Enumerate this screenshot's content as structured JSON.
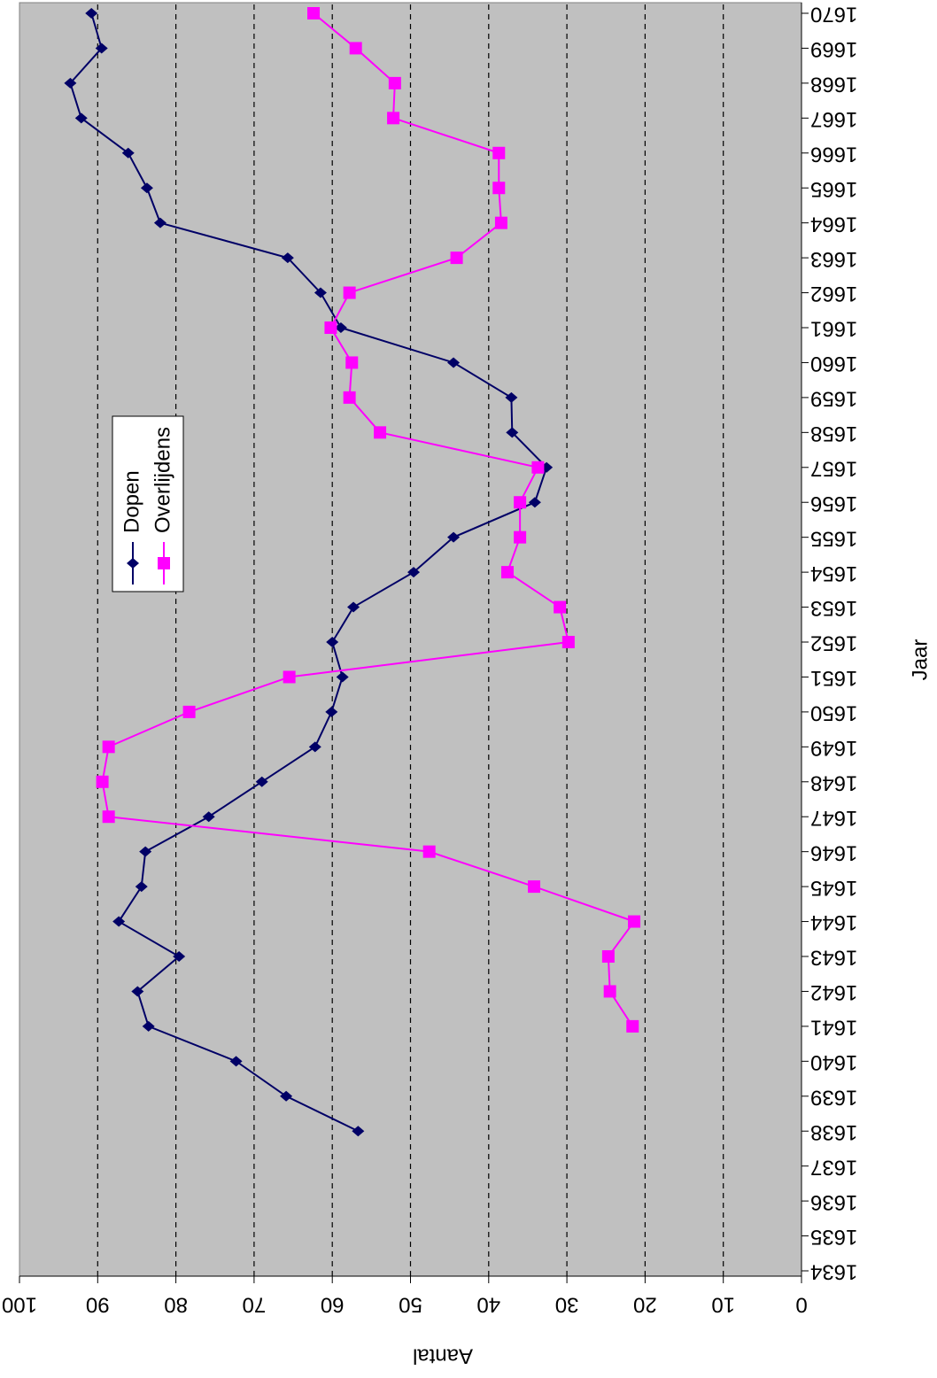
{
  "chart_data": {
    "type": "line",
    "x_label": "Jaar",
    "y_label": "Aantal",
    "categories": [
      "1634",
      "1635",
      "1636",
      "1637",
      "1638",
      "1639",
      "1640",
      "1641",
      "1642",
      "1643",
      "1644",
      "1645",
      "1646",
      "1647",
      "1648",
      "1649",
      "1650",
      "1651",
      "1652",
      "1653",
      "1654",
      "1655",
      "1656",
      "1657",
      "1658",
      "1659",
      "1660",
      "1661",
      "1662",
      "1663",
      "1664",
      "1665",
      "1666",
      "1667",
      "1668",
      "1669",
      "1670"
    ],
    "series": [
      {
        "name": "Dopen",
        "color": "#000066",
        "marker": "diamond",
        "values": [
          null,
          null,
          null,
          null,
          56.7,
          65.9,
          72.3,
          83.5,
          84.9,
          79.6,
          87.3,
          84.4,
          83.9,
          75.8,
          69,
          62.2,
          60.1,
          58.7,
          60,
          57.3,
          49.6,
          44.5,
          34.1,
          32.6,
          37,
          37.1,
          44.5,
          58.9,
          61.5,
          65.7,
          82,
          83.7,
          86.1,
          92.1,
          93.5,
          89.5,
          90.8
        ]
      },
      {
        "name": "Overlijdens",
        "color": "#ff00ff",
        "marker": "square",
        "values": [
          null,
          null,
          null,
          null,
          null,
          null,
          null,
          21.6,
          24.5,
          24.7,
          21.4,
          34.2,
          47.6,
          88.6,
          89.4,
          88.6,
          78.3,
          65.5,
          29.8,
          30.9,
          37.6,
          36,
          36,
          33.7,
          53.9,
          57.8,
          57.5,
          60.2,
          57.8,
          44.1,
          38.4,
          38.7,
          38.7,
          52.2,
          52,
          57,
          62.4
        ]
      }
    ],
    "ylim": [
      0,
      100
    ],
    "yticks": [
      0,
      10,
      20,
      30,
      40,
      50,
      60,
      70,
      80,
      90,
      100
    ],
    "grid": true
  }
}
